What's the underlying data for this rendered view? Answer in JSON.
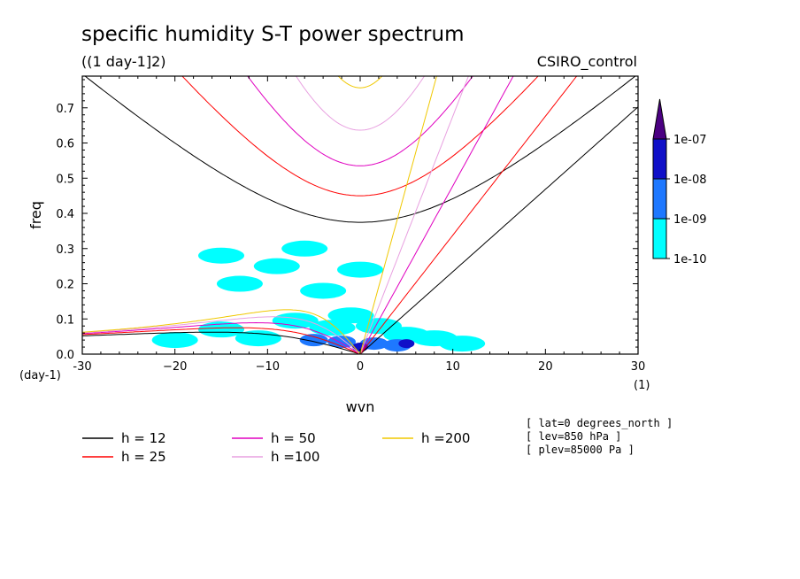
{
  "chart_data": {
    "type": "line",
    "title": "specific humidity S-T power spectrum",
    "subtitle": "((1 day-1]2)",
    "run_label": "CSIRO_control",
    "xlabel": "wvn",
    "ylabel": "freq",
    "x_unit": "(1)",
    "y_unit": "(day-1)",
    "xlim": [
      -30,
      30
    ],
    "ylim": [
      0,
      0.79
    ],
    "x_ticks": [
      -30,
      -20,
      -10,
      0,
      10,
      20,
      30
    ],
    "x_tick_labels": [
      "-30",
      "−20",
      "−10",
      "0",
      "10",
      "20",
      "30"
    ],
    "y_ticks": [
      0.0,
      0.1,
      0.2,
      0.3,
      0.4,
      0.5,
      0.6,
      0.7
    ],
    "y_tick_labels": [
      "0.0",
      "0.1",
      "0.2",
      "0.3",
      "0.4",
      "0.5",
      "0.6",
      "0.7"
    ],
    "colorbar": {
      "levels": [
        "1e-07",
        "1e-08",
        "1e-09",
        "1e-10"
      ],
      "colors": [
        "#4b0082",
        "#1010c8",
        "#1e78ff",
        "#00ffff"
      ]
    },
    "series": [
      {
        "name": "h = 12",
        "h": 12,
        "color": "#000000"
      },
      {
        "name": "h = 25",
        "h": 25,
        "color": "#ff0000"
      },
      {
        "name": "h = 50",
        "h": 50,
        "color": "#e000c0"
      },
      {
        "name": "h =100",
        "h": 100,
        "color": "#e8a0e0"
      },
      {
        "name": "h =200",
        "h": 200,
        "color": "#f0c800"
      }
    ],
    "info_lines": [
      "[ lat=0 degrees_north ]",
      "[ lev=850 hPa ]",
      "[ plev=85000 Pa ]"
    ],
    "shading_blobs": [
      {
        "x": -7,
        "y": 0.095,
        "level": "1e-10"
      },
      {
        "x": -3,
        "y": 0.075,
        "level": "1e-10"
      },
      {
        "x": -1,
        "y": 0.11,
        "level": "1e-10"
      },
      {
        "x": 2,
        "y": 0.08,
        "level": "1e-10"
      },
      {
        "x": 5,
        "y": 0.055,
        "level": "1e-10"
      },
      {
        "x": 8,
        "y": 0.045,
        "level": "1e-10"
      },
      {
        "x": 11,
        "y": 0.03,
        "level": "1e-10"
      },
      {
        "x": -11,
        "y": 0.045,
        "level": "1e-10"
      },
      {
        "x": -15,
        "y": 0.07,
        "level": "1e-10"
      },
      {
        "x": -20,
        "y": 0.04,
        "level": "1e-10"
      },
      {
        "x": -13,
        "y": 0.2,
        "level": "1e-10"
      },
      {
        "x": -9,
        "y": 0.25,
        "level": "1e-10"
      },
      {
        "x": -4,
        "y": 0.18,
        "level": "1e-10"
      },
      {
        "x": -6,
        "y": 0.3,
        "level": "1e-10"
      },
      {
        "x": 0,
        "y": 0.24,
        "level": "1e-10"
      },
      {
        "x": -15,
        "y": 0.28,
        "level": "1e-10"
      },
      {
        "x": -2,
        "y": 0.035,
        "level": "1e-09"
      },
      {
        "x": 1.5,
        "y": 0.03,
        "level": "1e-09"
      },
      {
        "x": 4,
        "y": 0.025,
        "level": "1e-09"
      },
      {
        "x": -5,
        "y": 0.04,
        "level": "1e-09"
      },
      {
        "x": 5,
        "y": 0.03,
        "level": "1e-08"
      },
      {
        "x": 0,
        "y": 0.02,
        "level": "1e-08"
      }
    ]
  }
}
